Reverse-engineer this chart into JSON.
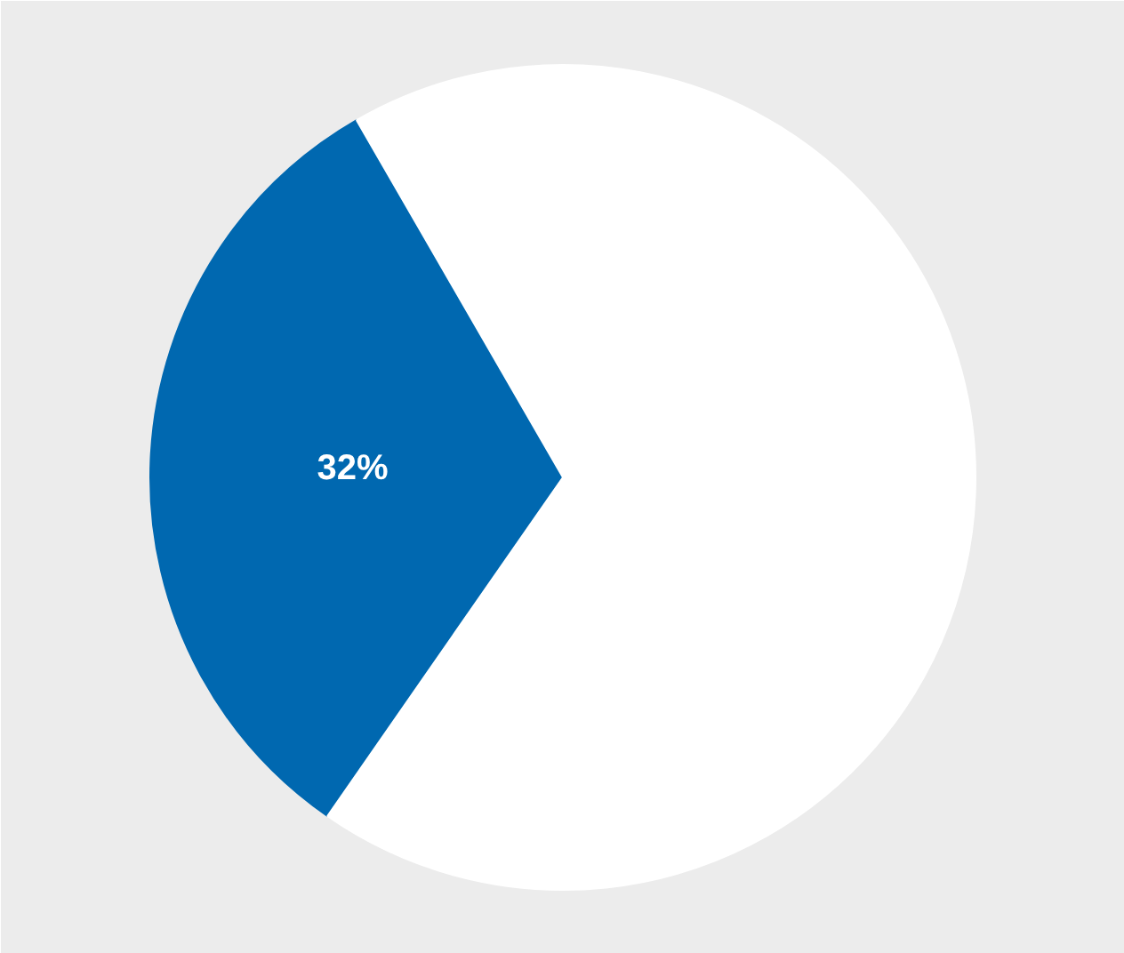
{
  "chart_data": {
    "type": "pie",
    "categories": [
      null,
      null
    ],
    "values": [
      32,
      68
    ],
    "colors": [
      "#0068b0",
      "#ffffff"
    ],
    "value_labels": [
      "32%",
      null
    ]
  }
}
